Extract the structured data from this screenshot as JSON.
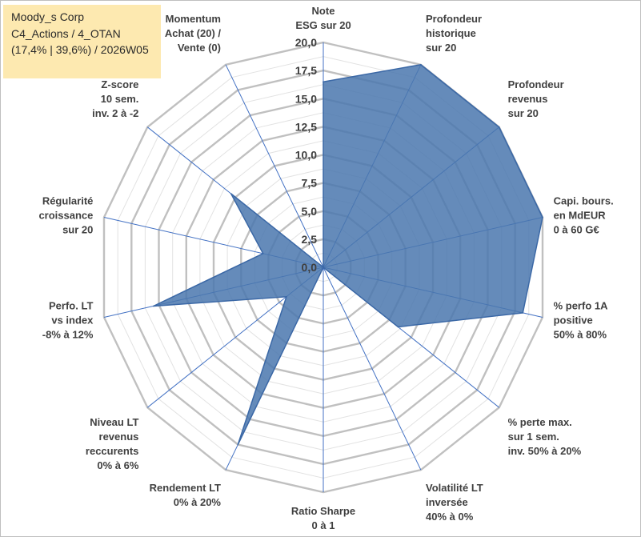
{
  "header": {
    "line1": "Moody_s Corp",
    "line2": "C4_Actions / 4_OTAN",
    "line3": "(17,4% | 39,6%) / 2026W05"
  },
  "colors": {
    "fill": "#4a77ae",
    "stroke": "#3b68a6",
    "grid": "#c0c0c0",
    "minor_grid": "#e2e2e2",
    "spoke": "#4472c4",
    "title_bg": "#fde9b0"
  },
  "chart_data": {
    "type": "radar",
    "title": "",
    "rmin": 0,
    "rmax": 20,
    "major_step": 2.5,
    "minor_step": 1.25,
    "ticks": [
      "0,0",
      "2,5",
      "5,0",
      "7,5",
      "10,0",
      "12,5",
      "15,0",
      "17,5",
      "20,0"
    ],
    "axes": [
      {
        "label": [
          "Note",
          "ESG sur 20"
        ],
        "value": 16.5
      },
      {
        "label": [
          "Profondeur",
          "historique",
          "sur 20"
        ],
        "value": 20
      },
      {
        "label": [
          "Profondeur",
          "revenus",
          "sur 20"
        ],
        "value": 20
      },
      {
        "label": [
          "Capi. bours.",
          "en MdEUR",
          "0 à 60 G€"
        ],
        "value": 20
      },
      {
        "label": [
          "% perfo 1A",
          "positive",
          "50% à 80%"
        ],
        "value": 18.2
      },
      {
        "label": [
          "% perte max.",
          "sur 1 sem.",
          "inv. 50% à 20%"
        ],
        "value": 8.5
      },
      {
        "label": [
          "Volatilité LT",
          "inversée",
          "40% à 0%"
        ],
        "value": 0
      },
      {
        "label": [
          "Ratio Sharpe",
          "0 à 1"
        ],
        "value": 0
      },
      {
        "label": [
          "Rendement LT",
          "0% à 20%"
        ],
        "value": 17.5
      },
      {
        "label": [
          "Niveau LT",
          "revenus",
          "reccurents",
          "0% à 6%"
        ],
        "value": 4.2
      },
      {
        "label": [
          "Perfo. LT",
          "vs index",
          "-8% à 12%"
        ],
        "value": 15.5
      },
      {
        "label": [
          "Régularité",
          "croissance",
          "sur 20"
        ],
        "value": 5.5
      },
      {
        "label": [
          "Z-score",
          "10 sem.",
          "inv. 2 à -2"
        ],
        "value": 10.5
      },
      {
        "label": [
          "Momentum",
          "Achat (20) /",
          "Vente (0)"
        ],
        "value": 0
      }
    ]
  }
}
